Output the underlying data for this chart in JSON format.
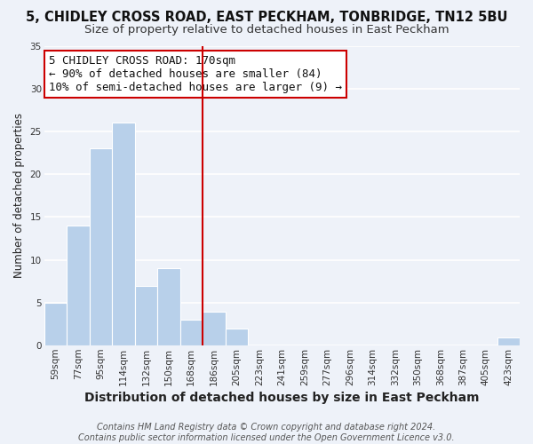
{
  "title": "5, CHIDLEY CROSS ROAD, EAST PECKHAM, TONBRIDGE, TN12 5BU",
  "subtitle": "Size of property relative to detached houses in East Peckham",
  "xlabel": "Distribution of detached houses by size in East Peckham",
  "ylabel": "Number of detached properties",
  "bar_labels": [
    "59sqm",
    "77sqm",
    "95sqm",
    "114sqm",
    "132sqm",
    "150sqm",
    "168sqm",
    "186sqm",
    "205sqm",
    "223sqm",
    "241sqm",
    "259sqm",
    "277sqm",
    "296sqm",
    "314sqm",
    "332sqm",
    "350sqm",
    "368sqm",
    "387sqm",
    "405sqm",
    "423sqm"
  ],
  "bar_heights": [
    5,
    14,
    23,
    26,
    7,
    9,
    3,
    4,
    2,
    0,
    0,
    0,
    0,
    0,
    0,
    0,
    0,
    0,
    0,
    0,
    1
  ],
  "bar_color": "#b8d0ea",
  "vline_color": "#cc0000",
  "vline_bar_index": 6,
  "annotation_line1": "5 CHIDLEY CROSS ROAD: 170sqm",
  "annotation_line2": "← 90% of detached houses are smaller (84)",
  "annotation_line3": "10% of semi-detached houses are larger (9) →",
  "annotation_box_facecolor": "white",
  "annotation_box_edgecolor": "#cc0000",
  "ylim": [
    0,
    35
  ],
  "yticks": [
    0,
    5,
    10,
    15,
    20,
    25,
    30,
    35
  ],
  "footer_text": "Contains HM Land Registry data © Crown copyright and database right 2024.\nContains public sector information licensed under the Open Government Licence v3.0.",
  "background_color": "#eef2f9",
  "grid_color": "white",
  "title_fontsize": 10.5,
  "subtitle_fontsize": 9.5,
  "xlabel_fontsize": 10,
  "ylabel_fontsize": 8.5,
  "tick_fontsize": 7.5,
  "annotation_fontsize": 9,
  "footer_fontsize": 7
}
